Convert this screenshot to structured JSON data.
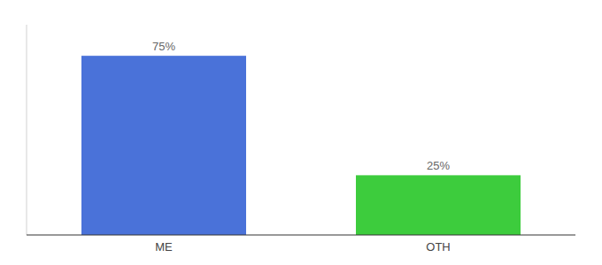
{
  "chart_data": {
    "type": "bar",
    "categories": [
      "ME",
      "OTH"
    ],
    "values": [
      75,
      25
    ],
    "value_labels": [
      "75%",
      "25%"
    ],
    "colors": [
      "#4a72d9",
      "#3dcc3d"
    ],
    "ylim": [
      0,
      88
    ],
    "data_labels": true,
    "tick_labels": "x"
  }
}
